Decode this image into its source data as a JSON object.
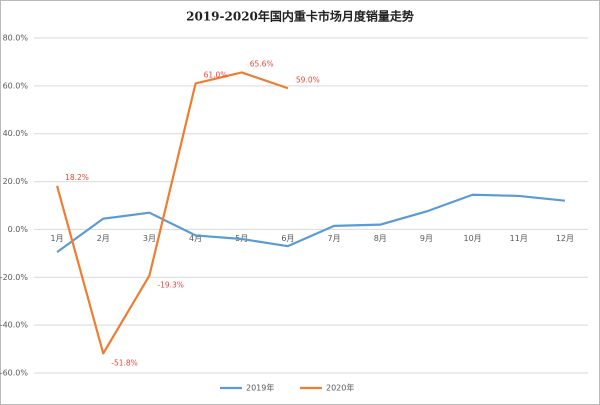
{
  "chart_data": {
    "type": "line",
    "title": "2019-2020年国内重卡市场月度销量走势",
    "categories": [
      "1月",
      "2月",
      "3月",
      "4月",
      "5月",
      "6月",
      "7月",
      "8月",
      "9月",
      "10月",
      "11月",
      "12月"
    ],
    "series": [
      {
        "name": "2019年",
        "color": "#5b9bd5",
        "values": [
          -9.5,
          4.5,
          7,
          -2.5,
          -4,
          -7,
          1.5,
          2,
          7.5,
          14.5,
          14,
          12
        ]
      },
      {
        "name": "2020年",
        "color": "#ed7d31",
        "values": [
          18.2,
          -51.8,
          -19.3,
          61.0,
          65.6,
          59.0,
          null,
          null,
          null,
          null,
          null,
          null
        ],
        "value_labels": [
          "18.2%",
          "-51.8%",
          "-19.3%",
          "61.0%",
          "65.6%",
          "59.0%",
          null,
          null,
          null,
          null,
          null,
          null
        ]
      }
    ],
    "ylim": [
      -60,
      80
    ],
    "yticks": [
      {
        "value": -60,
        "label": "-60.0%"
      },
      {
        "value": -40,
        "label": "-40.0%"
      },
      {
        "value": -20,
        "label": "-20.0%"
      },
      {
        "value": 0,
        "label": "0.0%"
      },
      {
        "value": 20,
        "label": "20.0%"
      },
      {
        "value": 40,
        "label": "40.0%"
      },
      {
        "value": 60,
        "label": "60.0%"
      },
      {
        "value": 80,
        "label": "80.0%"
      }
    ],
    "grid": true,
    "legend": "bottom"
  }
}
